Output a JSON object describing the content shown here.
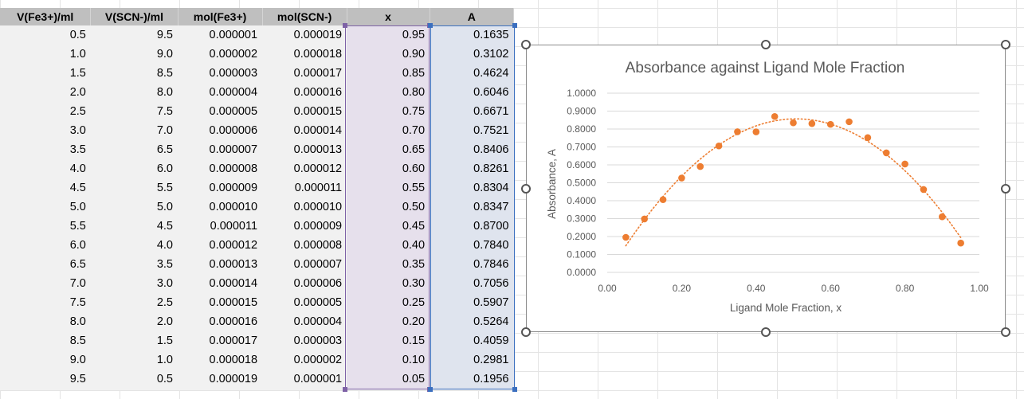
{
  "table": {
    "headers": [
      "V(Fe3+)/ml",
      "V(SCN-)/ml",
      "mol(Fe3+)",
      "mol(SCN-)",
      "x",
      "A"
    ],
    "rows": [
      [
        "0.5",
        "9.5",
        "0.000001",
        "0.000019",
        "0.95",
        "0.1635"
      ],
      [
        "1.0",
        "9.0",
        "0.000002",
        "0.000018",
        "0.90",
        "0.3102"
      ],
      [
        "1.5",
        "8.5",
        "0.000003",
        "0.000017",
        "0.85",
        "0.4624"
      ],
      [
        "2.0",
        "8.0",
        "0.000004",
        "0.000016",
        "0.80",
        "0.6046"
      ],
      [
        "2.5",
        "7.5",
        "0.000005",
        "0.000015",
        "0.75",
        "0.6671"
      ],
      [
        "3.0",
        "7.0",
        "0.000006",
        "0.000014",
        "0.70",
        "0.7521"
      ],
      [
        "3.5",
        "6.5",
        "0.000007",
        "0.000013",
        "0.65",
        "0.8406"
      ],
      [
        "4.0",
        "6.0",
        "0.000008",
        "0.000012",
        "0.60",
        "0.8261"
      ],
      [
        "4.5",
        "5.5",
        "0.000009",
        "0.000011",
        "0.55",
        "0.8304"
      ],
      [
        "5.0",
        "5.0",
        "0.000010",
        "0.000010",
        "0.50",
        "0.8347"
      ],
      [
        "5.5",
        "4.5",
        "0.000011",
        "0.000009",
        "0.45",
        "0.8700"
      ],
      [
        "6.0",
        "4.0",
        "0.000012",
        "0.000008",
        "0.40",
        "0.7840"
      ],
      [
        "6.5",
        "3.5",
        "0.000013",
        "0.000007",
        "0.35",
        "0.7846"
      ],
      [
        "7.0",
        "3.0",
        "0.000014",
        "0.000006",
        "0.30",
        "0.7056"
      ],
      [
        "7.5",
        "2.5",
        "0.000015",
        "0.000005",
        "0.25",
        "0.5907"
      ],
      [
        "8.0",
        "2.0",
        "0.000016",
        "0.000004",
        "0.20",
        "0.5264"
      ],
      [
        "8.5",
        "1.5",
        "0.000017",
        "0.000003",
        "0.15",
        "0.4059"
      ],
      [
        "9.0",
        "1.0",
        "0.000018",
        "0.000002",
        "0.10",
        "0.2981"
      ],
      [
        "9.5",
        "0.5",
        "0.000019",
        "0.000001",
        "0.05",
        "0.1956"
      ]
    ]
  },
  "colors": {
    "header_fill": "#bfbfbf",
    "x_column_fill": "#e6e0ec",
    "a_column_fill": "#dfe4ee",
    "x_selection_border": "#7e62a6",
    "a_selection_border": "#3b6fbf",
    "marker": "#ed7d31",
    "trendline": "#ed7d31",
    "gridline": "#d9d9d9"
  },
  "chart_data": {
    "type": "scatter",
    "title": "Absorbance against Ligand Mole Fraction",
    "xlabel": "Ligand Mole Fraction, x",
    "ylabel": "Absorbance, A",
    "xlim": [
      0,
      1
    ],
    "ylim": [
      0,
      1
    ],
    "xticks": [
      "0.00",
      "0.20",
      "0.40",
      "0.60",
      "0.80",
      "1.00"
    ],
    "yticks": [
      "0.0000",
      "0.1000",
      "0.2000",
      "0.3000",
      "0.4000",
      "0.5000",
      "0.6000",
      "0.7000",
      "0.8000",
      "0.9000",
      "1.0000"
    ],
    "grid": "horizontal",
    "legend": "none",
    "trendline": "polynomial (dotted)",
    "x": [
      0.95,
      0.9,
      0.85,
      0.8,
      0.75,
      0.7,
      0.65,
      0.6,
      0.55,
      0.5,
      0.45,
      0.4,
      0.35,
      0.3,
      0.25,
      0.2,
      0.15,
      0.1,
      0.05
    ],
    "y": [
      0.1635,
      0.3102,
      0.4624,
      0.6046,
      0.6671,
      0.7521,
      0.8406,
      0.8261,
      0.8304,
      0.8347,
      0.87,
      0.784,
      0.7846,
      0.7056,
      0.5907,
      0.5264,
      0.4059,
      0.2981,
      0.1956
    ]
  }
}
